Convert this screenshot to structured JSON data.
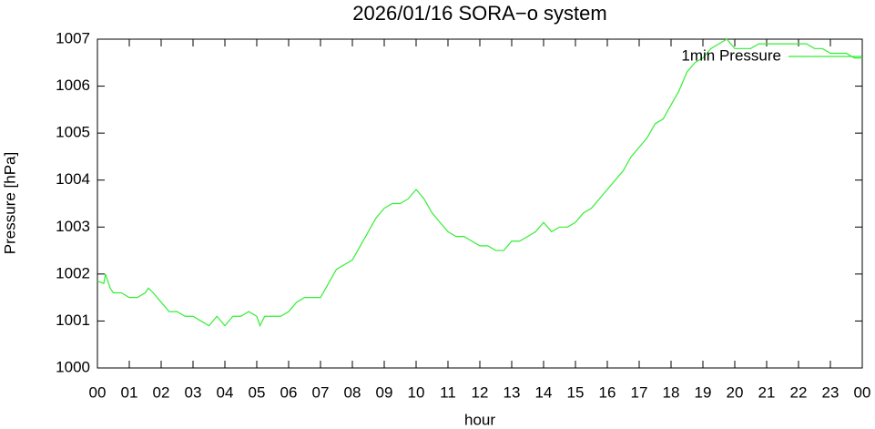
{
  "chart_data": {
    "type": "line",
    "title": "2026/01/16 SORA−o system",
    "x_label": "hour",
    "y_label": "Pressure [hPa]",
    "xlim": [
      0,
      24
    ],
    "xticks": [
      {
        "value": 0,
        "label": "00"
      },
      {
        "value": 1,
        "label": "01"
      },
      {
        "value": 2,
        "label": "02"
      },
      {
        "value": 3,
        "label": "03"
      },
      {
        "value": 4,
        "label": "04"
      },
      {
        "value": 5,
        "label": "05"
      },
      {
        "value": 6,
        "label": "06"
      },
      {
        "value": 7,
        "label": "07"
      },
      {
        "value": 8,
        "label": "08"
      },
      {
        "value": 9,
        "label": "09"
      },
      {
        "value": 10,
        "label": "10"
      },
      {
        "value": 11,
        "label": "11"
      },
      {
        "value": 12,
        "label": "12"
      },
      {
        "value": 13,
        "label": "13"
      },
      {
        "value": 14,
        "label": "14"
      },
      {
        "value": 15,
        "label": "15"
      },
      {
        "value": 16,
        "label": "16"
      },
      {
        "value": 17,
        "label": "17"
      },
      {
        "value": 18,
        "label": "18"
      },
      {
        "value": 19,
        "label": "19"
      },
      {
        "value": 20,
        "label": "20"
      },
      {
        "value": 21,
        "label": "21"
      },
      {
        "value": 22,
        "label": "22"
      },
      {
        "value": 23,
        "label": "23"
      },
      {
        "value": 24,
        "label": "00"
      }
    ],
    "ylim": [
      1000,
      1007
    ],
    "yticks": [
      1000,
      1001,
      1002,
      1003,
      1004,
      1005,
      1006,
      1007
    ],
    "grid": false,
    "legend": "top-right",
    "x": [
      0,
      0.2,
      0.25,
      0.4,
      0.5,
      0.75,
      1,
      1.25,
      1.5,
      1.6,
      1.75,
      2,
      2.25,
      2.5,
      2.75,
      3,
      3.25,
      3.5,
      3.75,
      4,
      4.25,
      4.5,
      4.75,
      5,
      5.1,
      5.25,
      5.5,
      5.75,
      6,
      6.25,
      6.5,
      6.75,
      7,
      7.25,
      7.5,
      7.75,
      8,
      8.25,
      8.5,
      8.75,
      9,
      9.25,
      9.5,
      9.75,
      10,
      10.25,
      10.5,
      10.75,
      11,
      11.25,
      11.5,
      11.75,
      12,
      12.25,
      12.5,
      12.75,
      13,
      13.25,
      13.5,
      13.75,
      14,
      14.25,
      14.5,
      14.75,
      15,
      15.25,
      15.5,
      15.75,
      16,
      16.25,
      16.5,
      16.75,
      17,
      17.25,
      17.5,
      17.75,
      18,
      18.25,
      18.5,
      18.75,
      19,
      19.25,
      19.5,
      19.75,
      20,
      20.25,
      20.5,
      20.75,
      21,
      21.25,
      21.5,
      21.75,
      22,
      22.25,
      22.5,
      22.75,
      23,
      23.25,
      23.5,
      23.75,
      24
    ],
    "series": [
      {
        "name": "1min Pressure",
        "color": "#33ee33",
        "values": [
          1001.85,
          1001.8,
          1002.0,
          1001.7,
          1001.6,
          1001.6,
          1001.5,
          1001.5,
          1001.6,
          1001.7,
          1001.6,
          1001.4,
          1001.2,
          1001.2,
          1001.1,
          1001.1,
          1001.0,
          1000.9,
          1001.1,
          1000.9,
          1001.1,
          1001.1,
          1001.2,
          1001.1,
          1000.9,
          1001.1,
          1001.1,
          1001.1,
          1001.2,
          1001.4,
          1001.5,
          1001.5,
          1001.5,
          1001.8,
          1002.1,
          1002.2,
          1002.3,
          1002.6,
          1002.9,
          1003.2,
          1003.4,
          1003.5,
          1003.5,
          1003.6,
          1003.8,
          1003.6,
          1003.3,
          1003.1,
          1002.9,
          1002.8,
          1002.8,
          1002.7,
          1002.6,
          1002.6,
          1002.5,
          1002.5,
          1002.7,
          1002.7,
          1002.8,
          1002.9,
          1003.1,
          1002.9,
          1003.0,
          1003.0,
          1003.1,
          1003.3,
          1003.4,
          1003.6,
          1003.8,
          1004.0,
          1004.2,
          1004.5,
          1004.7,
          1004.9,
          1005.2,
          1005.3,
          1005.6,
          1005.9,
          1006.3,
          1006.5,
          1006.6,
          1006.8,
          1006.9,
          1007.0,
          1006.8,
          1006.8,
          1006.8,
          1006.9,
          1006.9,
          1006.9,
          1006.9,
          1006.9,
          1006.9,
          1006.9,
          1006.8,
          1006.8,
          1006.7,
          1006.7,
          1006.7,
          1006.6,
          1006.6
        ]
      }
    ]
  }
}
